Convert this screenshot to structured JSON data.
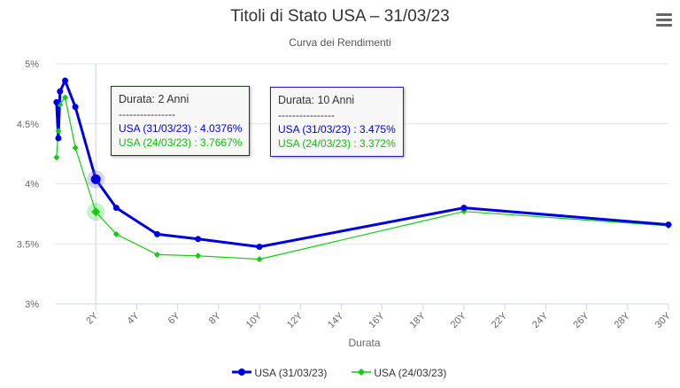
{
  "header": {
    "title": "Titoli di Stato USA – 31/03/23",
    "subtitle": "Curva dei Rendimenti",
    "menu_icon": "hamburger-menu-icon"
  },
  "tooltips": [
    {
      "head": "Durata: 2 Anni",
      "sep": "----------------",
      "line_a": "USA (31/03/23) : 4.0376%",
      "line_b": "USA (24/03/23) : 3.7667%"
    },
    {
      "head": "Durata: 10 Anni",
      "sep": "----------------",
      "line_a": "USA (31/03/23) : 3.475%",
      "line_b": "USA (24/03/23) : 3.372%"
    }
  ],
  "legend": [
    {
      "name": "USA (31/03/23)",
      "color": "#0000dd"
    },
    {
      "name": "USA (24/03/23)",
      "color": "#11cc11"
    }
  ],
  "chart_data": {
    "type": "line",
    "xlabel": "Durata",
    "ylabel": "",
    "xlim": [
      0,
      30
    ],
    "ylim": [
      3,
      5
    ],
    "x_ticks": [
      "2Y",
      "4Y",
      "6Y",
      "8Y",
      "10Y",
      "12Y",
      "14Y",
      "16Y",
      "18Y",
      "20Y",
      "22Y",
      "24Y",
      "26Y",
      "28Y",
      "30Y"
    ],
    "y_ticks": [
      "3%",
      "3.5%",
      "4%",
      "4.5%",
      "5%"
    ],
    "grid": "horizontal",
    "legend_position": "bottom",
    "series": [
      {
        "name": "USA (31/03/23)",
        "color": "#0000dd",
        "x": [
          0.08,
          0.17,
          0.25,
          0.5,
          1,
          2,
          3,
          5,
          7,
          10,
          20,
          30
        ],
        "y": [
          4.68,
          4.38,
          4.77,
          4.86,
          4.64,
          4.0376,
          3.8,
          3.58,
          3.54,
          3.475,
          3.8,
          3.66
        ]
      },
      {
        "name": "USA (24/03/23)",
        "color": "#11cc11",
        "x": [
          0.08,
          0.17,
          0.25,
          0.5,
          1,
          2,
          3,
          5,
          7,
          10,
          20,
          30
        ],
        "y": [
          4.22,
          4.44,
          4.66,
          4.72,
          4.3,
          3.7667,
          3.58,
          3.41,
          3.4,
          3.372,
          3.77,
          3.65
        ]
      }
    ],
    "highlight_x": 2
  }
}
